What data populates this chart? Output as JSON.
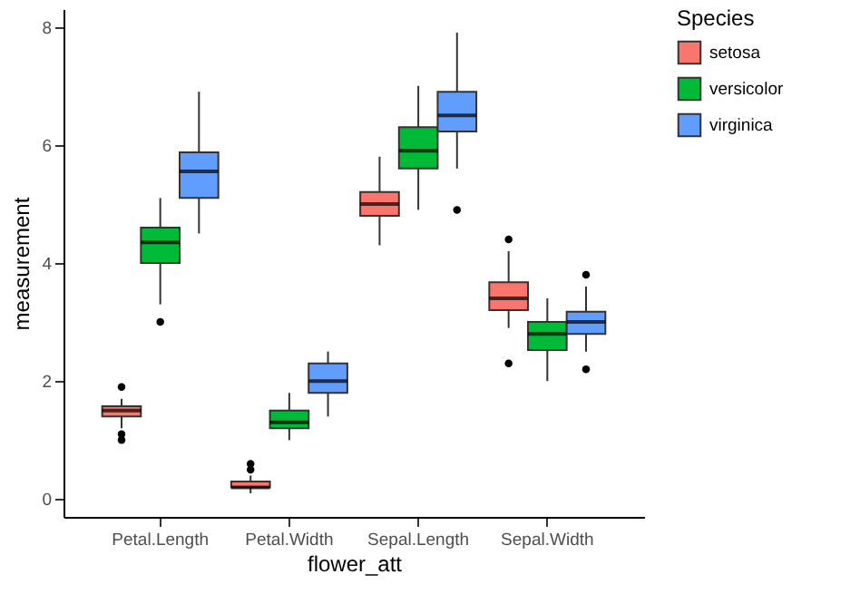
{
  "chart_data": {
    "type": "box",
    "xlabel": "flower_att",
    "ylabel": "measurement",
    "legend_title": "Species",
    "legend": "right",
    "categories": [
      "Petal.Length",
      "Petal.Width",
      "Sepal.Length",
      "Sepal.Width"
    ],
    "ylim": [
      -0.3,
      8.3
    ],
    "yticks": [
      0,
      2,
      4,
      6,
      8
    ],
    "series": [
      {
        "name": "setosa",
        "color": "#f8766d",
        "boxes": [
          {
            "low": 1.2,
            "q1": 1.4,
            "median": 1.5,
            "q3": 1.575,
            "high": 1.7,
            "outliers": [
              1.0,
              1.1,
              1.9
            ]
          },
          {
            "low": 0.1,
            "q1": 0.2,
            "median": 0.2,
            "q3": 0.3,
            "high": 0.4,
            "outliers": [
              0.5,
              0.6
            ]
          },
          {
            "low": 4.3,
            "q1": 4.8,
            "median": 5.0,
            "q3": 5.2,
            "high": 5.8
          },
          {
            "low": 2.9,
            "q1": 3.2,
            "median": 3.4,
            "q3": 3.675,
            "high": 4.2,
            "outliers": [
              2.3,
              4.4
            ]
          }
        ]
      },
      {
        "name": "versicolor",
        "color": "#00ba38",
        "boxes": [
          {
            "low": 3.3,
            "q1": 4.0,
            "median": 4.35,
            "q3": 4.6,
            "high": 5.1,
            "outliers": [
              3.0
            ]
          },
          {
            "low": 1.0,
            "q1": 1.2,
            "median": 1.3,
            "q3": 1.5,
            "high": 1.8
          },
          {
            "low": 4.9,
            "q1": 5.6,
            "median": 5.9,
            "q3": 6.3,
            "high": 7.0
          },
          {
            "low": 2.0,
            "q1": 2.525,
            "median": 2.8,
            "q3": 3.0,
            "high": 3.4
          }
        ]
      },
      {
        "name": "virginica",
        "color": "#619cff",
        "boxes": [
          {
            "low": 4.5,
            "q1": 5.1,
            "median": 5.55,
            "q3": 5.875,
            "high": 6.9
          },
          {
            "low": 1.4,
            "q1": 1.8,
            "median": 2.0,
            "q3": 2.3,
            "high": 2.5
          },
          {
            "low": 5.6,
            "q1": 6.225,
            "median": 6.5,
            "q3": 6.9,
            "high": 7.9,
            "outliers": [
              4.9
            ]
          },
          {
            "low": 2.5,
            "q1": 2.8,
            "median": 3.0,
            "q3": 3.175,
            "high": 3.6,
            "outliers": [
              2.2,
              3.8
            ]
          }
        ]
      }
    ]
  }
}
